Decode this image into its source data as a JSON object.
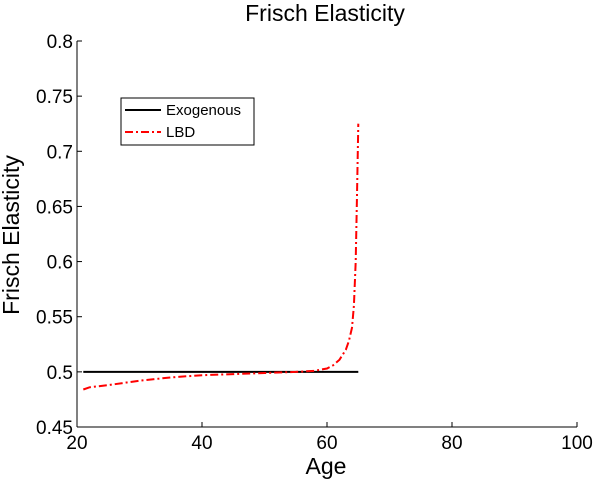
{
  "chart_data": {
    "type": "line",
    "title": "Frisch Elasticity",
    "xlabel": "Age",
    "ylabel": "Frisch Elasticity",
    "xlim": [
      20,
      100
    ],
    "ylim": [
      0.45,
      0.8
    ],
    "xticks": [
      "20",
      "40",
      "60",
      "80",
      "100"
    ],
    "yticks": [
      "0.45",
      "0.5",
      "0.55",
      "0.6",
      "0.65",
      "0.7",
      "0.75",
      "0.8"
    ],
    "grid": false,
    "legend_position": "top-left",
    "series": [
      {
        "name": "Exogenous",
        "color": "#000000",
        "style": "solid",
        "x": [
          21,
          65
        ],
        "y": [
          0.5,
          0.5
        ]
      },
      {
        "name": "LBD",
        "color": "#ff0000",
        "style": "dash-dot",
        "x": [
          21,
          22,
          25,
          30,
          35,
          40,
          45,
          50,
          55,
          58,
          60,
          61,
          62,
          63,
          63.5,
          64,
          64.3,
          64.6,
          64.8,
          65
        ],
        "y": [
          0.484,
          0.486,
          0.488,
          0.492,
          0.495,
          0.497,
          0.498,
          0.499,
          0.5,
          0.501,
          0.503,
          0.506,
          0.511,
          0.52,
          0.528,
          0.54,
          0.56,
          0.6,
          0.66,
          0.725
        ]
      }
    ]
  }
}
